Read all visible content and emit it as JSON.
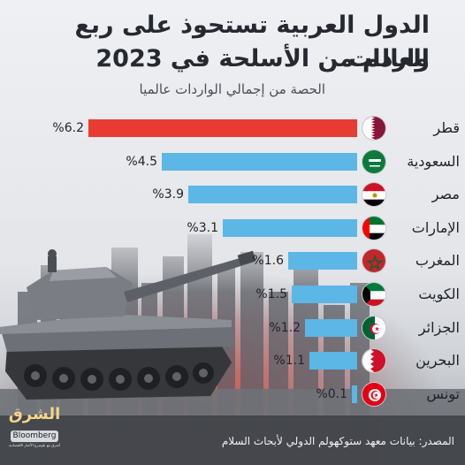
{
  "header": {
    "title_line1": "الدول العربية تستحوذ على ربع واردات",
    "title_line2": "العالم من الأسلحة في 2023",
    "subtitle": "الحصة من إجمالي الواردات عالميا"
  },
  "chart_data": {
    "type": "bar",
    "orientation": "horizontal",
    "title": "الدول العربية تستحوذ على ربع واردات العالم من الأسلحة في 2023",
    "subtitle": "الحصة من إجمالي الواردات عالميا",
    "categories": [
      "قطر",
      "السعودية",
      "مصر",
      "الإمارات",
      "المغرب",
      "الكويت",
      "الجزائر",
      "البحرين",
      "تونس"
    ],
    "values": [
      6.2,
      4.5,
      3.9,
      3.1,
      1.6,
      1.5,
      1.2,
      1.1,
      0.1
    ],
    "value_labels": [
      "%6.2",
      "%4.5",
      "%3.9",
      "%3.1",
      "%1.6",
      "%1.5",
      "%1.2",
      "%1.1",
      "%0.1"
    ],
    "highlight_color": "#e83b33",
    "bar_color": "#5cb6e6",
    "highlight_index": 0,
    "xlim": [
      0,
      6.2
    ]
  },
  "flags": [
    "qatar-flag-icon",
    "saudi-flag-icon",
    "egypt-flag-icon",
    "uae-flag-icon",
    "morocco-flag-icon",
    "kuwait-flag-icon",
    "algeria-flag-icon",
    "bahrain-flag-icon",
    "tunisia-flag-icon"
  ],
  "footer": {
    "source": "المصدر: بيانات معهد ستوكهولم الدولي لأبحاث السلام",
    "logo_ar": "الشرق",
    "logo_en": "Bloomberg",
    "logo_tag": "أشرق مع بلومبرغ الأخبار الاقتصادية"
  }
}
